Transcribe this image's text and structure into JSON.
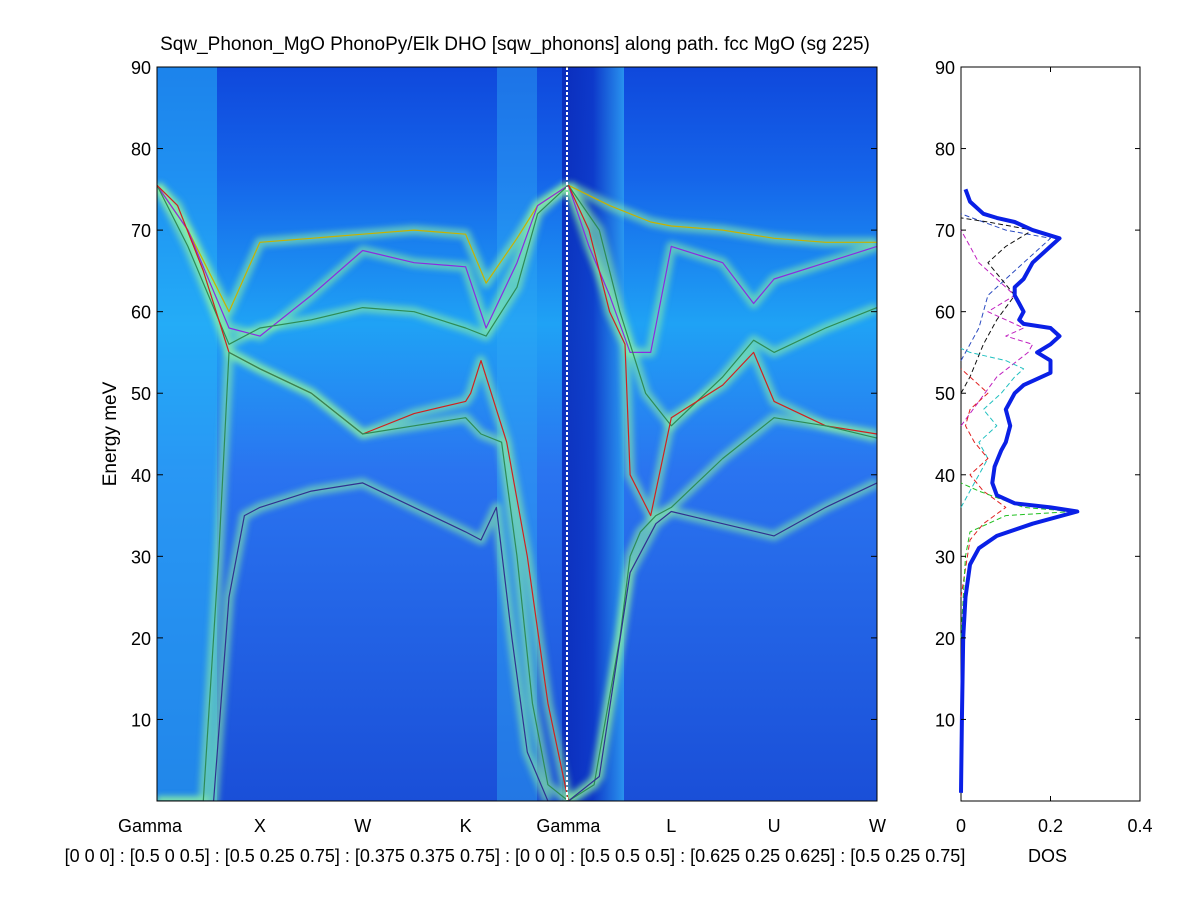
{
  "colors": {
    "background": "#ffffff",
    "axes": "#000000",
    "dos_total": "#0a20e6",
    "heatmap_low": "#1f5ce6",
    "heatmap_high": "#ffff3a"
  },
  "chart_data": [
    {
      "type": "heatmap",
      "title": "Sqw_Phonon_MgO PhonoPy/Elk DHO [sqw_phonons] along path. fcc MgO (sg 225)",
      "ylabel": "Energy meV",
      "xlabel": "[0 0 0] : [0.5 0 0.5] : [0.5 0.25 0.75] : [0.375 0.375 0.75] : [0 0 0] : [0.5 0.5 0.5] : [0.625 0.25 0.625] : [0.5 0.25 0.75]",
      "ylim": [
        0,
        90
      ],
      "yticks": [
        "10",
        "20",
        "30",
        "40",
        "50",
        "60",
        "70",
        "80",
        "90"
      ],
      "x_labels": [
        "Gamma",
        "X",
        "W",
        "K",
        "Gamma",
        "L",
        "U",
        "W"
      ],
      "x_label_positions": [
        0,
        1,
        2,
        3,
        4,
        5,
        6,
        7
      ],
      "xlim": [
        0,
        7
      ],
      "colormap": "jet",
      "grid": false,
      "branches": [
        {
          "color": "#c8b000",
          "x": [
            0,
            0.3,
            0.7,
            1,
            1.5,
            2,
            2.5,
            3,
            3.2,
            3.5,
            3.7,
            4
          ],
          "y": [
            75.5,
            70,
            60,
            68.5,
            69,
            69.5,
            70,
            69.5,
            63.5,
            69,
            73,
            75.5
          ]
        },
        {
          "color": "#8a2be2",
          "x": [
            0,
            0.3,
            0.7,
            1,
            1.5,
            2,
            2.5,
            3,
            3.2,
            3.5,
            3.7,
            4
          ],
          "y": [
            75.5,
            70,
            58,
            57,
            62,
            67.5,
            66,
            65.5,
            58,
            66,
            73,
            75.5
          ]
        },
        {
          "color": "#2e8b57",
          "x": [
            0,
            0.3,
            0.7,
            1,
            1.5,
            2,
            2.5,
            3,
            3.2,
            3.5,
            3.7,
            4
          ],
          "y": [
            75.5,
            68,
            56,
            58,
            59,
            60.5,
            60,
            58,
            57,
            63,
            72,
            75.5
          ]
        },
        {
          "color": "#d02020",
          "x": [
            0,
            0.2,
            0.45,
            0.7,
            1,
            1.5,
            2,
            2.5,
            3,
            3.05,
            3.15,
            3.4,
            3.6,
            3.8,
            4
          ],
          "y": [
            75.5,
            73,
            65,
            55,
            53,
            50,
            45,
            47.5,
            49,
            50,
            54,
            44,
            30,
            12,
            0
          ]
        },
        {
          "color": "#2e8b57",
          "x": [
            0,
            0.2,
            0.45,
            0.6,
            0.7,
            1,
            1.5,
            2,
            2.5,
            3,
            3.15,
            3.35,
            3.5,
            3.65,
            3.8,
            4
          ],
          "y": [
            0,
            0,
            0,
            30,
            55,
            53,
            50,
            45,
            46,
            47,
            45,
            44,
            30,
            12,
            2,
            0
          ]
        },
        {
          "color": "#303090",
          "x": [
            0,
            0.4,
            0.55,
            0.7,
            0.85,
            1,
            1.5,
            2,
            2.5,
            3,
            3.15,
            3.3,
            3.45,
            3.6,
            3.8
          ],
          "y": [
            0,
            0,
            0,
            25,
            35,
            36,
            38,
            39,
            36,
            33,
            32,
            36,
            20,
            6,
            0
          ]
        },
        {
          "color": "#c8b000",
          "x": [
            4,
            4.4,
            4.8,
            5,
            5.5,
            6,
            6.5,
            7
          ],
          "y": [
            75.5,
            73,
            71,
            70.5,
            70,
            69,
            68.5,
            68.5
          ]
        },
        {
          "color": "#8a2be2",
          "x": [
            4,
            4.2,
            4.4,
            4.6,
            4.8,
            5,
            5.5,
            5.8,
            6,
            6.5,
            7
          ],
          "y": [
            75.5,
            68,
            62,
            55,
            55,
            68,
            66,
            61,
            64,
            66,
            68
          ]
        },
        {
          "color": "#2e8b57",
          "x": [
            4,
            4.3,
            4.5,
            4.75,
            5,
            5.5,
            5.8,
            6,
            6.5,
            7
          ],
          "y": [
            75.5,
            70,
            60,
            50,
            46,
            52,
            56.5,
            55,
            58,
            60.5
          ]
        },
        {
          "color": "#d02020",
          "x": [
            4,
            4.2,
            4.4,
            4.55,
            4.6,
            4.8,
            5,
            5.5,
            5.8,
            6,
            6.5,
            7
          ],
          "y": [
            75.5,
            70,
            60,
            56,
            40,
            35,
            47,
            51,
            55,
            49,
            46,
            45
          ]
        },
        {
          "color": "#2e8b57",
          "x": [
            4,
            4.25,
            4.5,
            4.6,
            4.7,
            4.85,
            5,
            5.5,
            6,
            6.5,
            7
          ],
          "y": [
            0,
            2,
            20,
            30,
            33,
            35,
            36,
            42,
            47,
            46,
            44.5
          ]
        },
        {
          "color": "#303090",
          "x": [
            4,
            4.3,
            4.6,
            4.85,
            5,
            5.5,
            6,
            6.5,
            7
          ],
          "y": [
            0,
            3,
            28,
            34,
            35.5,
            34,
            32.5,
            36,
            39
          ]
        }
      ]
    },
    {
      "type": "line",
      "xlabel": "DOS",
      "xlim": [
        0,
        0.4
      ],
      "ylim": [
        0,
        90
      ],
      "xticks": [
        "0",
        "0.2",
        "0.4"
      ],
      "yticks": [
        "10",
        "20",
        "30",
        "40",
        "50",
        "60",
        "70",
        "80",
        "90"
      ],
      "grid": false,
      "series": [
        {
          "color": "#0a20e6",
          "width": 4,
          "dash": false,
          "points": [
            [
              0,
              1
            ],
            [
              0.002,
              10
            ],
            [
              0.005,
              20
            ],
            [
              0.01,
              25
            ],
            [
              0.02,
              29
            ],
            [
              0.04,
              31
            ],
            [
              0.08,
              32.5
            ],
            [
              0.16,
              34
            ],
            [
              0.26,
              35.5
            ],
            [
              0.2,
              36
            ],
            [
              0.12,
              36.5
            ],
            [
              0.08,
              37.5
            ],
            [
              0.07,
              39
            ],
            [
              0.075,
              41
            ],
            [
              0.09,
              43
            ],
            [
              0.1,
              44
            ],
            [
              0.11,
              46
            ],
            [
              0.1,
              48
            ],
            [
              0.12,
              50
            ],
            [
              0.14,
              51
            ],
            [
              0.18,
              52
            ],
            [
              0.2,
              52.5
            ],
            [
              0.2,
              54
            ],
            [
              0.17,
              55
            ],
            [
              0.2,
              56
            ],
            [
              0.22,
              57
            ],
            [
              0.2,
              58
            ],
            [
              0.14,
              58.5
            ],
            [
              0.13,
              59
            ],
            [
              0.14,
              60
            ],
            [
              0.13,
              61
            ],
            [
              0.12,
              62
            ],
            [
              0.12,
              63
            ],
            [
              0.14,
              64
            ],
            [
              0.16,
              66
            ],
            [
              0.2,
              68
            ],
            [
              0.22,
              69
            ],
            [
              0.16,
              70
            ],
            [
              0.12,
              71
            ],
            [
              0.08,
              71.5
            ],
            [
              0.05,
              72
            ],
            [
              0.02,
              73.5
            ],
            [
              0.01,
              75
            ]
          ]
        },
        {
          "color": "#20c020",
          "width": 1,
          "dash": true,
          "points": [
            [
              0,
              20
            ],
            [
              0.01,
              30
            ],
            [
              0.02,
              33
            ],
            [
              0.1,
              35
            ],
            [
              0.25,
              35.5
            ],
            [
              0.14,
              36
            ],
            [
              0.04,
              38
            ],
            [
              0,
              39
            ]
          ]
        },
        {
          "color": "#e02020",
          "width": 1,
          "dash": true,
          "points": [
            [
              0,
              25
            ],
            [
              0.02,
              32
            ],
            [
              0.05,
              34
            ],
            [
              0.1,
              36
            ],
            [
              0.05,
              38
            ],
            [
              0.02,
              40
            ],
            [
              0.06,
              42
            ],
            [
              0.03,
              44
            ],
            [
              0.01,
              46
            ],
            [
              0.02,
              48
            ],
            [
              0.06,
              50
            ],
            [
              0.02,
              52
            ],
            [
              0,
              53
            ]
          ]
        },
        {
          "color": "#20c0c0",
          "width": 1,
          "dash": true,
          "points": [
            [
              0,
              36
            ],
            [
              0.03,
              39
            ],
            [
              0.06,
              42
            ],
            [
              0.04,
              44
            ],
            [
              0.08,
              46
            ],
            [
              0.05,
              48
            ],
            [
              0.09,
              50
            ],
            [
              0.12,
              52
            ],
            [
              0.14,
              53
            ],
            [
              0.1,
              54
            ],
            [
              0.02,
              55
            ],
            [
              0,
              55.5
            ]
          ]
        },
        {
          "color": "#c020c0",
          "width": 1,
          "dash": true,
          "points": [
            [
              0,
              46
            ],
            [
              0.04,
              49
            ],
            [
              0.08,
              52
            ],
            [
              0.15,
              55
            ],
            [
              0.16,
              56
            ],
            [
              0.1,
              57
            ],
            [
              0.14,
              58
            ],
            [
              0.1,
              59
            ],
            [
              0.06,
              60
            ],
            [
              0.12,
              62
            ],
            [
              0.08,
              64
            ],
            [
              0.04,
              66
            ],
            [
              0.02,
              68
            ],
            [
              0,
              70
            ]
          ]
        },
        {
          "color": "#101010",
          "width": 1,
          "dash": true,
          "points": [
            [
              0,
              50
            ],
            [
              0.02,
              52
            ],
            [
              0.05,
              56
            ],
            [
              0.08,
              59
            ],
            [
              0.12,
              62
            ],
            [
              0.09,
              64
            ],
            [
              0.06,
              66
            ],
            [
              0.1,
              68
            ],
            [
              0.16,
              70
            ],
            [
              0.06,
              71
            ],
            [
              0,
              71.5
            ]
          ]
        },
        {
          "color": "#2a4ac0",
          "width": 1,
          "dash": true,
          "points": [
            [
              0,
              54
            ],
            [
              0.04,
              58
            ],
            [
              0.06,
              62
            ],
            [
              0.1,
              64
            ],
            [
              0.14,
              66
            ],
            [
              0.2,
              69
            ],
            [
              0.1,
              70
            ],
            [
              0.05,
              71
            ],
            [
              0,
              72
            ]
          ]
        }
      ]
    }
  ]
}
